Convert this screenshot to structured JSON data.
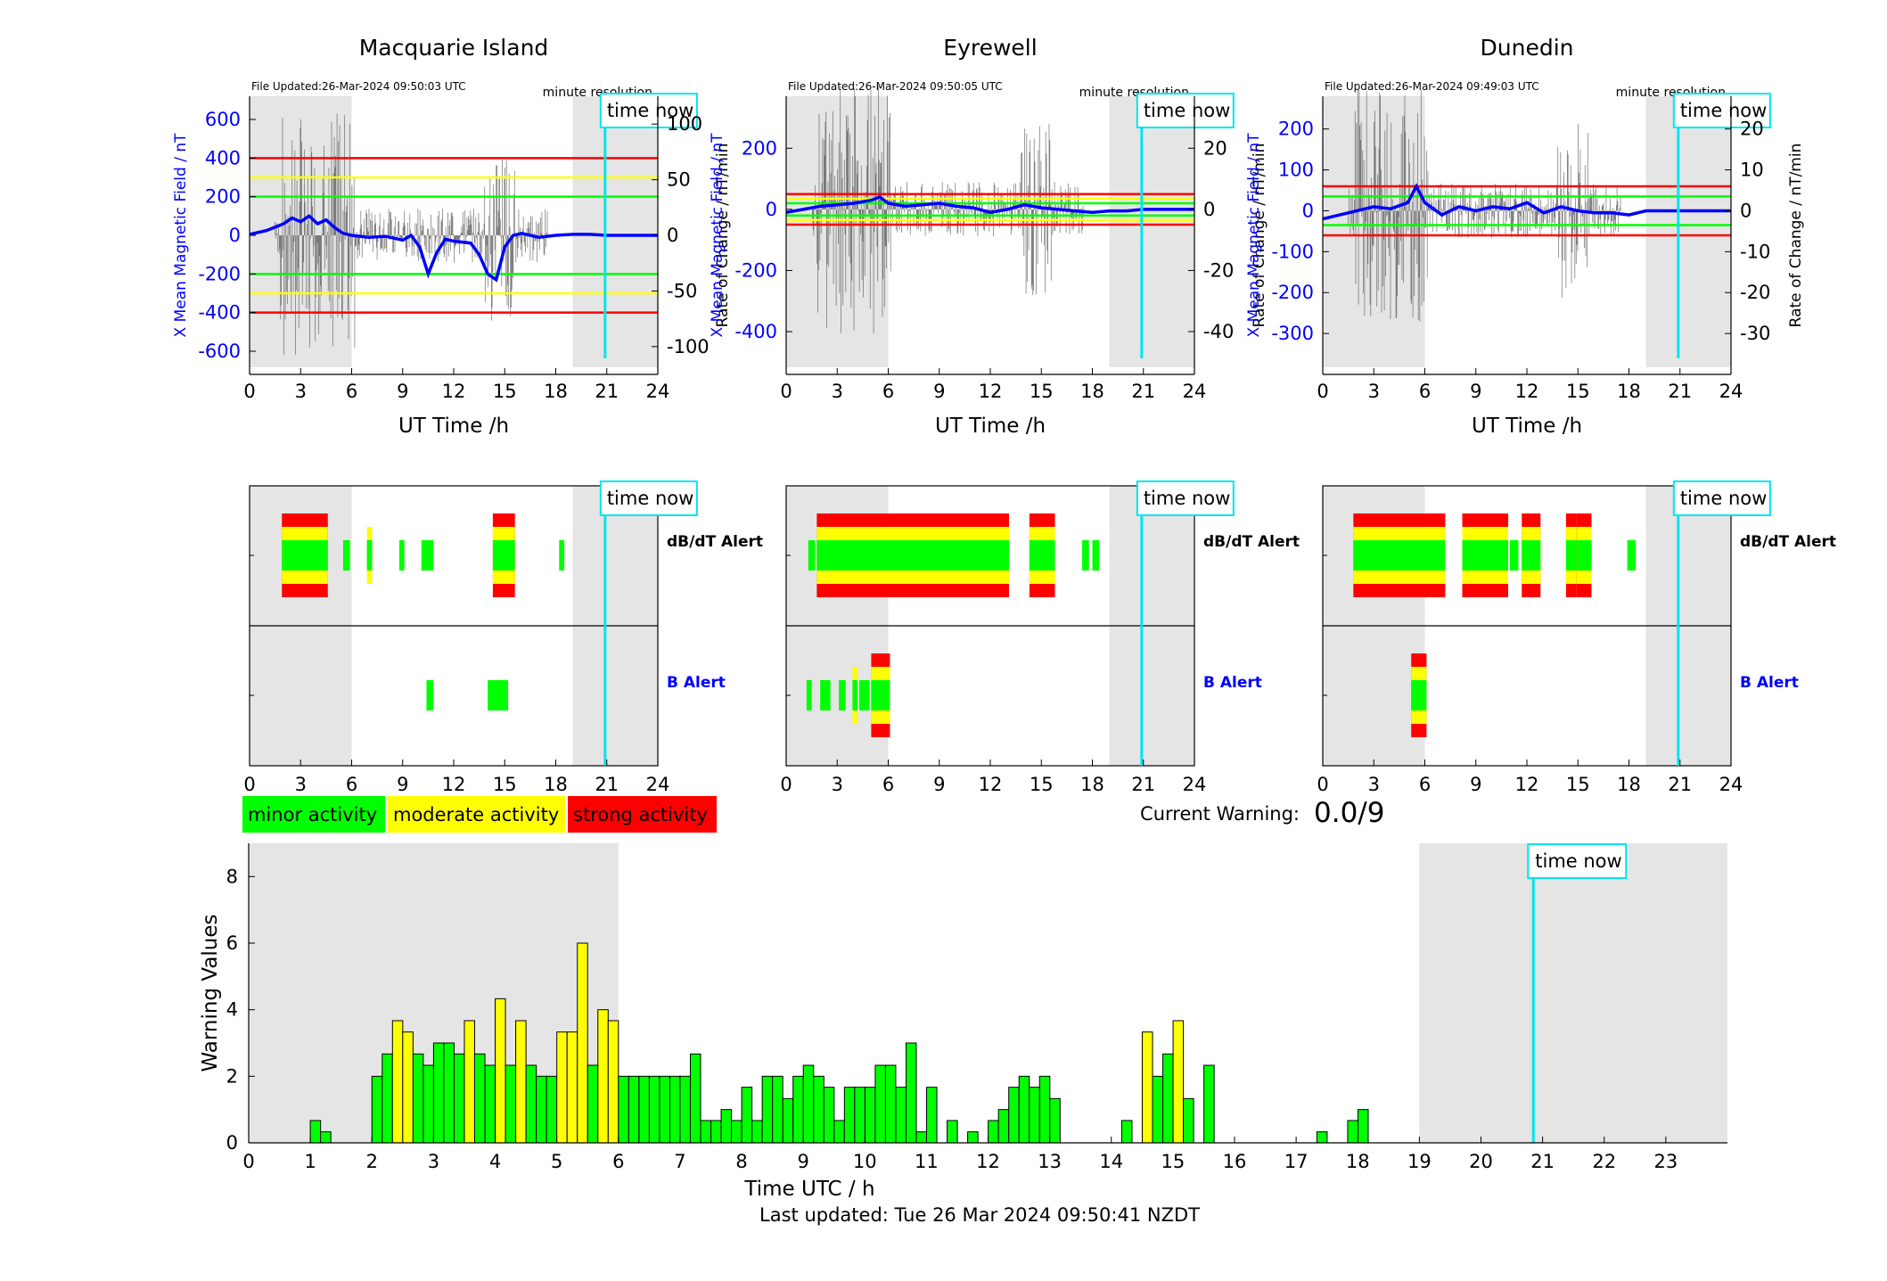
{
  "stations": [
    {
      "name": "Macquarie Island",
      "file_updated": "File Updated:26-Mar-2024 09:50:03 UTC",
      "resolution": "minute resolution",
      "left_ylabel": "X Mean Magnetic Field / nT",
      "right_ylabel": "Rate of Change / nT/min",
      "left_ticks": [
        600,
        400,
        200,
        0,
        -200,
        -400,
        -600
      ],
      "left_range": [
        -720,
        720
      ],
      "right_ticks": [
        100,
        50,
        0,
        -50,
        -100
      ],
      "right_range": [
        -125,
        125
      ],
      "thresholds": [
        {
          "v": 400,
          "color": "#ff0000"
        },
        {
          "v": 300,
          "color": "#ffff00"
        },
        {
          "v": 200,
          "color": "#00ff00"
        },
        {
          "v": -200,
          "color": "#00ff00"
        },
        {
          "v": -300,
          "color": "#ffff00"
        },
        {
          "v": -400,
          "color": "#ff0000"
        }
      ],
      "field_points": [
        [
          0,
          5
        ],
        [
          1,
          25
        ],
        [
          2,
          60
        ],
        [
          2.5,
          90
        ],
        [
          3,
          70
        ],
        [
          3.5,
          100
        ],
        [
          4,
          60
        ],
        [
          4.5,
          80
        ],
        [
          5,
          40
        ],
        [
          5.5,
          10
        ],
        [
          6,
          0
        ],
        [
          7,
          -10
        ],
        [
          8,
          -5
        ],
        [
          9,
          -25
        ],
        [
          9.5,
          0
        ],
        [
          10,
          -60
        ],
        [
          10.5,
          -200
        ],
        [
          11,
          -90
        ],
        [
          11.5,
          -20
        ],
        [
          12,
          -30
        ],
        [
          13,
          -40
        ],
        [
          13.5,
          -100
        ],
        [
          14,
          -200
        ],
        [
          14.5,
          -230
        ],
        [
          15,
          -60
        ],
        [
          15.5,
          0
        ],
        [
          16,
          10
        ],
        [
          17,
          -10
        ],
        [
          18,
          0
        ],
        [
          19,
          5
        ],
        [
          20,
          5
        ],
        [
          21,
          0
        ],
        [
          24,
          0
        ]
      ],
      "dbdt_alert": [
        {
          "s": 1.9,
          "e": 4.6,
          "lvl": 3
        },
        {
          "s": 5.5,
          "e": 5.9,
          "lvl": 1
        },
        {
          "s": 6.9,
          "e": 7.2,
          "lvl": 2
        },
        {
          "s": 8.8,
          "e": 9.1,
          "lvl": 1
        },
        {
          "s": 10.1,
          "e": 10.8,
          "lvl": 1
        },
        {
          "s": 14.3,
          "e": 15.6,
          "lvl": 3
        },
        {
          "s": 18.2,
          "e": 18.5,
          "lvl": 1
        }
      ],
      "b_alert": [
        {
          "s": 10.4,
          "e": 10.8,
          "lvl": 1
        },
        {
          "s": 14.0,
          "e": 15.2,
          "lvl": 1
        }
      ],
      "dbdt_label": "dB/dT Alert",
      "b_label": "B Alert"
    },
    {
      "name": "Eyrewell",
      "file_updated": "File Updated:26-Mar-2024 09:50:05 UTC",
      "resolution": "minute resolution",
      "left_ylabel": "X Mean Magnetic Field / nT",
      "right_ylabel": "Rate of Change / nT/min",
      "left_ticks": [
        200,
        0,
        -200,
        -400
      ],
      "left_range": [
        -540,
        370
      ],
      "right_ticks": [
        20,
        0,
        -20,
        -40
      ],
      "right_range": [
        -54,
        37
      ],
      "thresholds": [
        {
          "v": 50,
          "color": "#ff0000"
        },
        {
          "v": 35,
          "color": "#ffff00"
        },
        {
          "v": 20,
          "color": "#00ff00"
        },
        {
          "v": -20,
          "color": "#00ff00"
        },
        {
          "v": -35,
          "color": "#ffff00"
        },
        {
          "v": -50,
          "color": "#ff0000"
        }
      ],
      "field_points": [
        [
          0,
          -10
        ],
        [
          1,
          0
        ],
        [
          2,
          10
        ],
        [
          3,
          15
        ],
        [
          4,
          20
        ],
        [
          5,
          30
        ],
        [
          5.5,
          40
        ],
        [
          6,
          20
        ],
        [
          7,
          10
        ],
        [
          8,
          15
        ],
        [
          9,
          20
        ],
        [
          10,
          10
        ],
        [
          11,
          5
        ],
        [
          12,
          -10
        ],
        [
          13,
          0
        ],
        [
          14,
          15
        ],
        [
          15,
          5
        ],
        [
          16,
          0
        ],
        [
          17,
          -5
        ],
        [
          18,
          -10
        ],
        [
          19,
          -5
        ],
        [
          20,
          -5
        ],
        [
          21,
          0
        ],
        [
          24,
          0
        ]
      ],
      "dbdt_alert": [
        {
          "s": 1.8,
          "e": 13.1,
          "lvl": 3
        },
        {
          "s": 1.3,
          "e": 1.7,
          "lvl": 1
        },
        {
          "s": 14.3,
          "e": 15.8,
          "lvl": 3
        },
        {
          "s": 17.4,
          "e": 17.8,
          "lvl": 1
        },
        {
          "s": 18.0,
          "e": 18.4,
          "lvl": 1
        }
      ],
      "b_alert": [
        {
          "s": 1.2,
          "e": 1.5,
          "lvl": 1
        },
        {
          "s": 2.0,
          "e": 2.6,
          "lvl": 1
        },
        {
          "s": 3.1,
          "e": 3.5,
          "lvl": 1
        },
        {
          "s": 3.9,
          "e": 4.2,
          "lvl": 2
        },
        {
          "s": 4.3,
          "e": 4.9,
          "lvl": 1
        },
        {
          "s": 5.0,
          "e": 6.1,
          "lvl": 3
        }
      ],
      "dbdt_label": "dB/dT Alert",
      "b_label": "B Alert"
    },
    {
      "name": "Dunedin",
      "file_updated": "File Updated:26-Mar-2024 09:49:03 UTC",
      "resolution": "minute resolution",
      "left_ylabel": "X Mean Magnetic Field / nT",
      "right_ylabel": "Rate of Change / nT/min",
      "left_ticks": [
        200,
        100,
        0,
        -100,
        -200,
        -300
      ],
      "left_range": [
        -400,
        280
      ],
      "right_ticks": [
        20,
        10,
        0,
        -10,
        -20,
        -30
      ],
      "right_range": [
        -40,
        28
      ],
      "thresholds": [
        {
          "v": 60,
          "color": "#ff0000"
        },
        {
          "v": 35,
          "color": "#00ff00"
        },
        {
          "v": -35,
          "color": "#00ff00"
        },
        {
          "v": -60,
          "color": "#ff0000"
        }
      ],
      "field_points": [
        [
          0,
          -20
        ],
        [
          1,
          -10
        ],
        [
          2,
          0
        ],
        [
          3,
          10
        ],
        [
          4,
          5
        ],
        [
          5,
          20
        ],
        [
          5.5,
          60
        ],
        [
          6,
          20
        ],
        [
          7,
          -10
        ],
        [
          8,
          10
        ],
        [
          9,
          0
        ],
        [
          10,
          10
        ],
        [
          11,
          5
        ],
        [
          12,
          20
        ],
        [
          13,
          -5
        ],
        [
          14,
          10
        ],
        [
          15,
          0
        ],
        [
          16,
          -5
        ],
        [
          17,
          -5
        ],
        [
          18,
          -10
        ],
        [
          19,
          0
        ],
        [
          20,
          0
        ],
        [
          21,
          0
        ],
        [
          24,
          0
        ]
      ],
      "dbdt_alert": [
        {
          "s": 1.8,
          "e": 7.2,
          "lvl": 3
        },
        {
          "s": 8.2,
          "e": 10.9,
          "lvl": 3
        },
        {
          "s": 11.0,
          "e": 11.5,
          "lvl": 1
        },
        {
          "s": 11.7,
          "e": 12.8,
          "lvl": 3
        },
        {
          "s": 14.3,
          "e": 14.9,
          "lvl": 3
        },
        {
          "s": 14.9,
          "e": 15.8,
          "lvl": 3
        },
        {
          "s": 17.9,
          "e": 18.4,
          "lvl": 1
        }
      ],
      "b_alert": [
        {
          "s": 5.2,
          "e": 6.1,
          "lvl": 3
        }
      ],
      "dbdt_label": "dB/dT Alert",
      "b_label": "B Alert"
    }
  ],
  "xlabel": "UT Time /h",
  "x_ticks": [
    0,
    3,
    6,
    9,
    12,
    15,
    18,
    21,
    24
  ],
  "time_now_label": "time now",
  "time_now_hour": 20.9,
  "shaded_regions": [
    [
      0,
      6
    ],
    [
      19,
      24
    ]
  ],
  "legend": [
    {
      "label": "minor activity",
      "color": "#00ff00"
    },
    {
      "label": "moderate activity",
      "color": "#ffff00"
    },
    {
      "label": "strong activity",
      "color": "#ff0000"
    }
  ],
  "current_warning_label": "Current Warning:",
  "current_warning_value": "0.0/9",
  "chart_data": {
    "type": "bar",
    "x_step_hours": 0.1667,
    "x_start_hour": 1.0,
    "values": [
      0.67,
      0.33,
      0,
      0,
      0,
      0,
      2,
      2.67,
      3.67,
      3.33,
      2.67,
      2.33,
      3,
      3,
      2.67,
      3.67,
      2.67,
      2.33,
      4.33,
      2.33,
      3.67,
      2.33,
      2,
      2,
      3.33,
      3.33,
      6,
      2.33,
      4,
      3.67,
      2,
      2,
      2,
      2,
      2,
      2,
      2,
      2.67,
      0.67,
      0.67,
      1,
      0.67,
      1.67,
      0.67,
      2,
      2,
      1.33,
      2,
      2.33,
      2,
      1.67,
      0.67,
      1.67,
      1.67,
      1.67,
      2.33,
      2.33,
      1.67,
      3,
      0.33,
      1.67,
      0,
      0.67,
      0,
      0.33,
      0,
      0.67,
      1,
      1.67,
      2,
      1.67,
      2,
      1.33,
      0,
      0,
      0,
      0,
      0,
      0,
      0.67,
      0,
      3.33,
      2,
      2.67,
      3.67,
      1.33,
      0,
      2.33,
      0,
      0,
      0,
      0,
      0,
      0,
      0,
      0,
      0,
      0,
      0.33,
      0,
      0,
      0.67,
      1
    ],
    "levels": [
      1,
      1,
      0,
      0,
      0,
      0,
      1,
      1,
      2,
      2,
      1,
      1,
      1,
      1,
      1,
      2,
      1,
      1,
      2,
      1,
      2,
      1,
      1,
      1,
      2,
      2,
      2,
      1,
      2,
      2,
      1,
      1,
      1,
      1,
      1,
      1,
      1,
      1,
      1,
      1,
      1,
      1,
      1,
      1,
      1,
      1,
      1,
      1,
      1,
      1,
      1,
      1,
      1,
      1,
      1,
      1,
      1,
      1,
      1,
      1,
      1,
      0,
      1,
      0,
      1,
      0,
      1,
      1,
      1,
      1,
      1,
      1,
      1,
      0,
      0,
      0,
      0,
      0,
      0,
      1,
      0,
      2,
      1,
      1,
      2,
      1,
      0,
      1,
      0,
      0,
      0,
      0,
      0,
      0,
      0,
      0,
      0,
      0,
      1,
      0,
      0,
      1,
      1
    ],
    "x_ticks": [
      0,
      1,
      2,
      3,
      4,
      5,
      6,
      7,
      8,
      9,
      10,
      11,
      12,
      13,
      14,
      15,
      16,
      17,
      18,
      19,
      20,
      21,
      22,
      23
    ],
    "y_ticks": [
      0,
      2,
      4,
      6,
      8
    ],
    "ylim": [
      0,
      9
    ],
    "xlim": [
      0,
      24
    ],
    "xlabel": "Time UTC / h",
    "ylabel": "Warning Values",
    "shaded_regions": [
      [
        0,
        6
      ],
      [
        19,
        24
      ]
    ],
    "time_now_hour": 20.85
  },
  "footer": "Last updated: Tue 26 Mar 2024 09:50:41 NZDT",
  "colors": {
    "minor": "#00ff00",
    "moderate": "#ffff00",
    "strong": "#ff0000",
    "field": "#0000ff",
    "time_now": "#00e5ee",
    "shade": "#e5e5e5"
  }
}
